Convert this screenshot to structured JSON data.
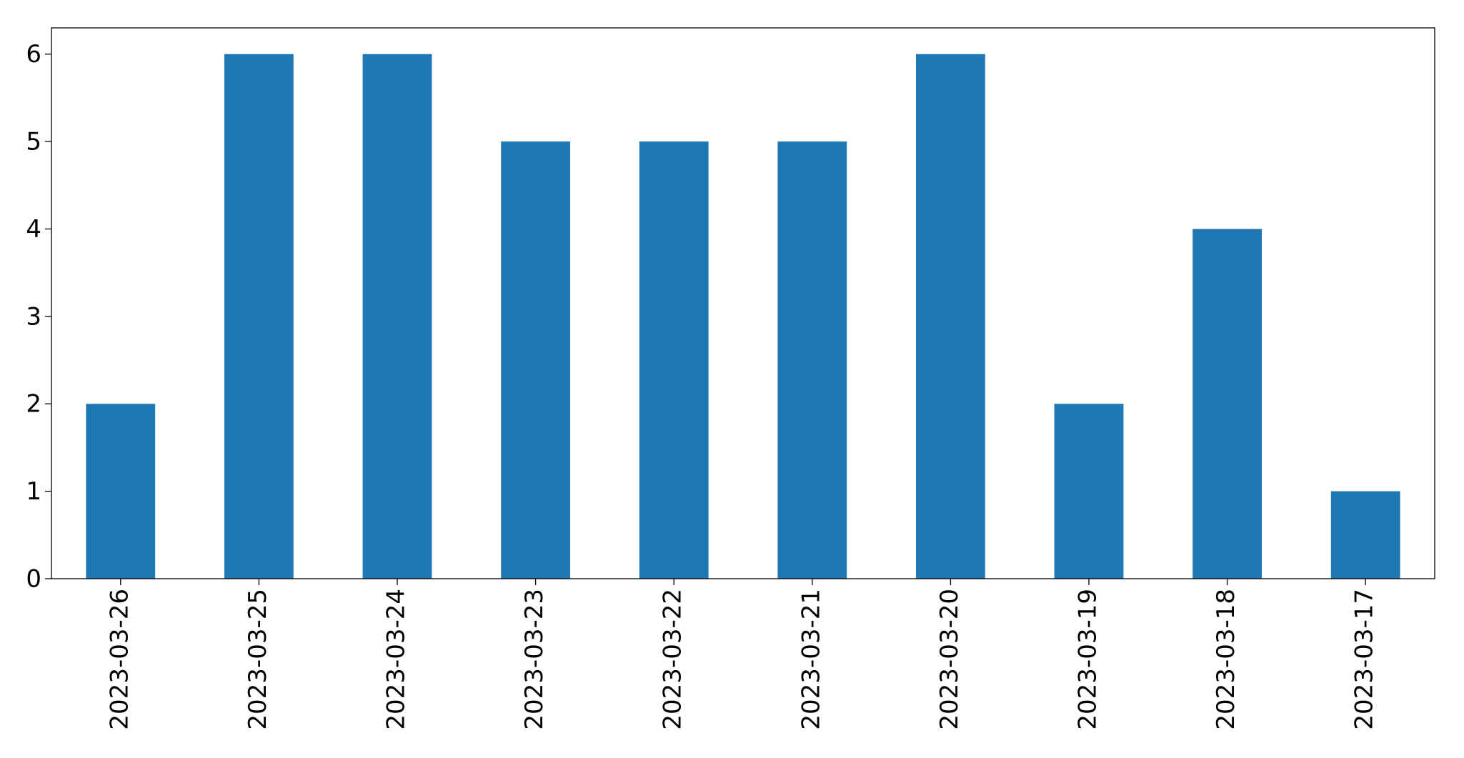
{
  "chart_data": {
    "type": "bar",
    "categories": [
      "2023-03-26",
      "2023-03-25",
      "2023-03-24",
      "2023-03-23",
      "2023-03-22",
      "2023-03-21",
      "2023-03-20",
      "2023-03-19",
      "2023-03-18",
      "2023-03-17"
    ],
    "values": [
      2,
      6,
      6,
      5,
      5,
      5,
      6,
      2,
      4,
      1
    ],
    "color": "#1f77b4",
    "ylim": [
      0,
      6.3
    ],
    "yticks": [
      0,
      1,
      2,
      3,
      4,
      5,
      6
    ],
    "grid": false
  }
}
